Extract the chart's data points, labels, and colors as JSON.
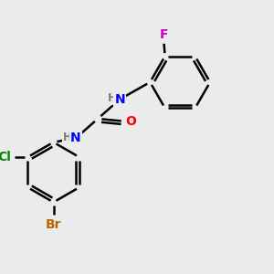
{
  "background_color": "#ebebeb",
  "bond_color": "#000000",
  "bond_width": 1.8,
  "atom_colors": {
    "F": "#cc00cc",
    "N": "#0000ff",
    "O": "#ff0000",
    "Cl": "#008800",
    "Br": "#bb6600",
    "C": "#000000",
    "H": "#7a7a7a"
  },
  "font_size_atoms": 10,
  "font_size_H": 9,
  "font_size_small": 8.5
}
